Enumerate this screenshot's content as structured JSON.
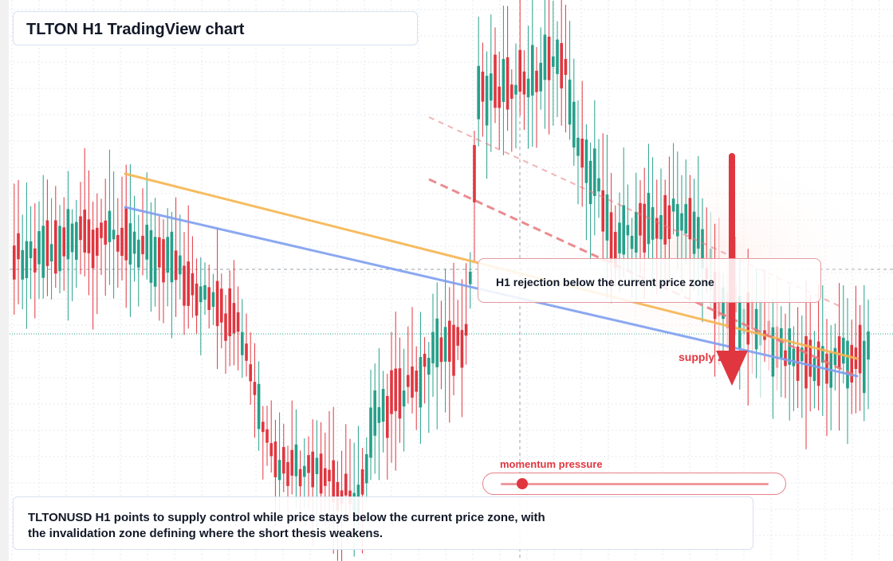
{
  "title": "TLTON H1 TradingView chart",
  "note": "H1 rejection below the current price zone",
  "supply_label": "supply zone",
  "momentum": {
    "label": "momentum pressure",
    "level": 0.08
  },
  "summary": {
    "line1": "TLTONUSD H1 points to supply control while price stays below the current price zone, with",
    "line2": "the invalidation zone defining where the short thesis weakens."
  },
  "colors": {
    "bull": "#26a08a",
    "bear": "#e0363f",
    "trend_orange": "#f6b550",
    "trend_blue": "#7f9ff0",
    "dashed_red": "#e8777c",
    "arrow": "#e0363f"
  },
  "chart_data": {
    "type": "candlestick",
    "timeframe": "H1",
    "symbol": "TLTONUSD",
    "grid": true,
    "price_range_relative": [
      0,
      1
    ],
    "annotations": [
      "H1 rejection below the current price zone",
      "supply zone",
      "momentum pressure"
    ]
  }
}
